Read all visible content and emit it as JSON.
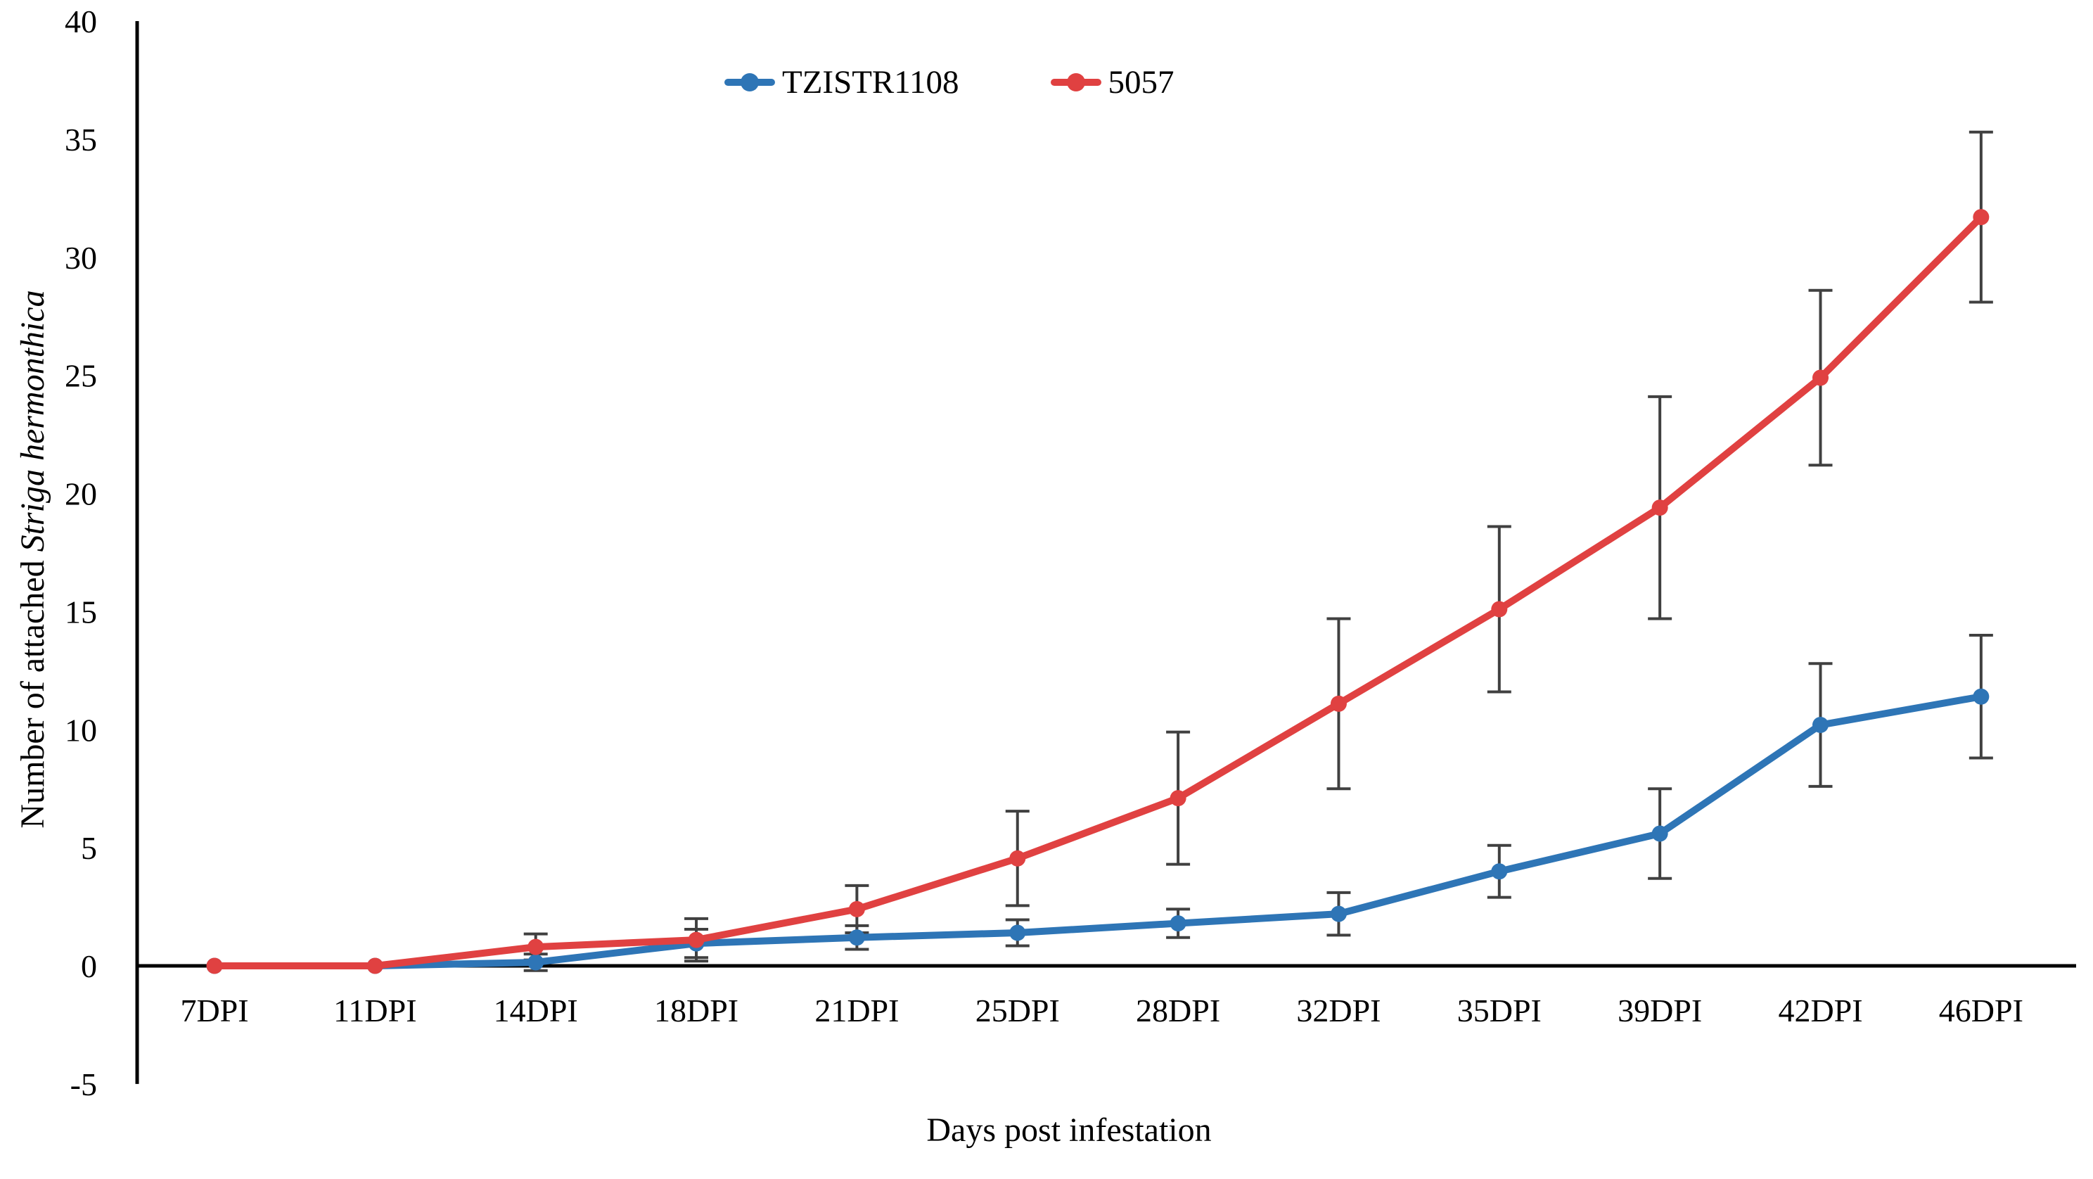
{
  "chart_data": {
    "type": "line",
    "title": "",
    "xlabel": "Days post infestation",
    "ylabel": "Number of attached Striga hermonthica",
    "ylabel_parts": [
      {
        "text": "Number of attached ",
        "italic": false
      },
      {
        "text": "Striga hermonthica",
        "italic": true
      }
    ],
    "categories": [
      "7DPI",
      "11DPI",
      "14DPI",
      "18DPI",
      "21DPI",
      "25DPI",
      "28DPI",
      "32DPI",
      "35DPI",
      "39DPI",
      "42DPI",
      "46DPI"
    ],
    "y_ticks": [
      40,
      35,
      30,
      25,
      20,
      15,
      10,
      5,
      0,
      -5
    ],
    "ylim": [
      -5,
      40
    ],
    "grid": false,
    "legend_position": "top-center",
    "error_bar_color": "#404040",
    "axis_color": "#000000",
    "series": [
      {
        "name": "TZISTR1108",
        "color": "#2E75B6",
        "values": [
          0,
          0,
          0.15,
          0.95,
          1.2,
          1.4,
          1.8,
          2.2,
          4.0,
          5.6,
          10.2,
          11.4
        ],
        "errors": [
          0,
          0,
          0.35,
          0.6,
          0.5,
          0.55,
          0.6,
          0.9,
          1.1,
          1.9,
          2.6,
          2.6
        ]
      },
      {
        "name": "5057",
        "color": "#E04141",
        "values": [
          0,
          0,
          0.8,
          1.1,
          2.4,
          4.55,
          7.1,
          11.1,
          15.1,
          19.4,
          24.9,
          31.7
        ],
        "errors": [
          0,
          0,
          0.55,
          0.9,
          1.0,
          2.0,
          2.8,
          3.6,
          3.5,
          4.7,
          3.7,
          3.6
        ]
      }
    ]
  }
}
